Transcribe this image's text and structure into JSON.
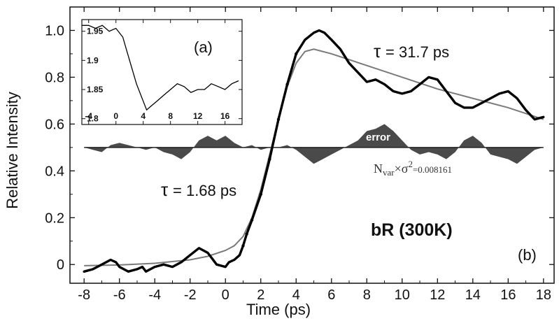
{
  "chart_data": [
    {
      "type": "line",
      "xlabel": "Time (ps)",
      "ylabel": "Relative Intensity",
      "xlim": [
        -8.8,
        18.6
      ],
      "ylim": [
        -0.08,
        1.1
      ],
      "x_ticks": [
        "-8",
        "-6",
        "-4",
        "-2",
        "0",
        "2",
        "4",
        "6",
        "8",
        "10",
        "12",
        "14",
        "16",
        "18"
      ],
      "x_tick_values": [
        -8,
        -6,
        -4,
        -2,
        0,
        2,
        4,
        6,
        8,
        10,
        12,
        14,
        16,
        18
      ],
      "y_ticks": [
        "0",
        "0.2",
        "0.4",
        "0.6",
        "0.8",
        "1.0"
      ],
      "y_tick_values": [
        0,
        0.2,
        0.4,
        0.6,
        0.8,
        1.0
      ],
      "panel_label": "(b)",
      "sample_label": "bR (300K)",
      "annotations": {
        "tau_rise": "= 1.68 ps",
        "tau_decay": "= 31.7 ps",
        "tau_symbol": "τ",
        "error_label": "error",
        "nvar_prefix": "N",
        "nvar_sub": "var",
        "nvar_times": "×σ",
        "nvar_sup": "2",
        "nvar_value": "=0.008161"
      },
      "series": [
        {
          "role": "data",
          "x": [
            -8,
            -7.5,
            -7,
            -6.5,
            -6.2,
            -6,
            -5.5,
            -5,
            -4.7,
            -4.5,
            -4,
            -3.5,
            -3,
            -2.5,
            -2,
            -1.5,
            -1,
            -0.5,
            0,
            0.2,
            0.5,
            0.8,
            1,
            1.2,
            1.5,
            2,
            2.5,
            3,
            3.5,
            4,
            4.5,
            5,
            5.3,
            5.6,
            6,
            6.5,
            7,
            7.5,
            8,
            8.5,
            9,
            9.5,
            10,
            10.5,
            11,
            11.5,
            12,
            12.5,
            13,
            13.5,
            14,
            14.5,
            15,
            15.5,
            16,
            16.5,
            17,
            17.5,
            18
          ],
          "y": [
            -0.03,
            -0.02,
            0.0,
            0.02,
            0.01,
            -0.01,
            -0.03,
            -0.02,
            -0.01,
            -0.03,
            -0.01,
            0.0,
            -0.01,
            0.01,
            0.04,
            0.07,
            0.05,
            0.0,
            -0.01,
            0.01,
            0.02,
            0.04,
            0.08,
            0.13,
            0.19,
            0.3,
            0.45,
            0.62,
            0.77,
            0.9,
            0.96,
            0.99,
            1.0,
            0.99,
            0.96,
            0.92,
            0.86,
            0.82,
            0.78,
            0.79,
            0.77,
            0.74,
            0.73,
            0.74,
            0.77,
            0.8,
            0.79,
            0.74,
            0.69,
            0.67,
            0.67,
            0.69,
            0.71,
            0.73,
            0.74,
            0.71,
            0.66,
            0.62,
            0.63
          ]
        },
        {
          "role": "fit",
          "x": [
            -8,
            -6,
            -4,
            -2,
            -1,
            0,
            0.5,
            1,
            1.5,
            2,
            2.5,
            3,
            3.5,
            4,
            4.5,
            5,
            6,
            8,
            10,
            12,
            14,
            16,
            18
          ],
          "y": [
            -0.005,
            -0.002,
            0.005,
            0.02,
            0.035,
            0.06,
            0.08,
            0.12,
            0.2,
            0.32,
            0.47,
            0.62,
            0.76,
            0.86,
            0.91,
            0.92,
            0.9,
            0.85,
            0.8,
            0.75,
            0.71,
            0.67,
            0.62
          ]
        },
        {
          "role": "error",
          "baseline": 0.5,
          "x": [
            -8,
            -7.5,
            -7,
            -6.5,
            -6,
            -5.5,
            -5,
            -4.5,
            -4,
            -3.5,
            -3,
            -2.5,
            -2,
            -1.5,
            -1,
            -0.5,
            0,
            0.5,
            1,
            1.5,
            2,
            2.5,
            3,
            3.5,
            4,
            4.5,
            5,
            5.5,
            6,
            6.5,
            7,
            7.5,
            8,
            8.5,
            9,
            9.5,
            10,
            10.5,
            11,
            11.5,
            12,
            12.5,
            13,
            13.5,
            14,
            14.5,
            15,
            15.5,
            16,
            16.5,
            17,
            17.5,
            18
          ],
          "y": [
            0.5,
            0.49,
            0.48,
            0.51,
            0.52,
            0.51,
            0.5,
            0.49,
            0.5,
            0.48,
            0.47,
            0.45,
            0.48,
            0.53,
            0.55,
            0.53,
            0.55,
            0.52,
            0.5,
            0.51,
            0.49,
            0.5,
            0.5,
            0.51,
            0.49,
            0.46,
            0.43,
            0.45,
            0.47,
            0.49,
            0.51,
            0.53,
            0.57,
            0.58,
            0.6,
            0.57,
            0.53,
            0.49,
            0.47,
            0.48,
            0.47,
            0.45,
            0.48,
            0.53,
            0.55,
            0.52,
            0.47,
            0.46,
            0.45,
            0.43,
            0.46,
            0.49,
            0.5
          ]
        }
      ]
    },
    {
      "type": "line",
      "panel_label": "(a)",
      "xlim": [
        -5,
        18.5
      ],
      "ylim": [
        1.79,
        1.97
      ],
      "x_ticks": [
        "-4",
        "0",
        "4",
        "8",
        "12",
        "16"
      ],
      "x_tick_values": [
        -4,
        0,
        4,
        8,
        12,
        16
      ],
      "y_ticks": [
        "1.8",
        "1.85",
        "1.9",
        "1.95"
      ],
      "y_tick_values": [
        1.8,
        1.85,
        1.9,
        1.95
      ],
      "series": [
        {
          "role": "data",
          "x": [
            -5,
            -4,
            -3,
            -2,
            -1,
            0,
            1,
            2,
            3,
            4,
            4.5,
            5,
            6,
            7,
            8,
            9,
            10,
            11,
            12,
            13,
            14,
            15,
            16,
            17,
            18
          ],
          "y": [
            1.96,
            1.96,
            1.955,
            1.96,
            1.95,
            1.955,
            1.94,
            1.9,
            1.86,
            1.83,
            1.815,
            1.82,
            1.83,
            1.84,
            1.85,
            1.86,
            1.855,
            1.845,
            1.85,
            1.85,
            1.86,
            1.855,
            1.85,
            1.86,
            1.865
          ]
        }
      ]
    }
  ]
}
